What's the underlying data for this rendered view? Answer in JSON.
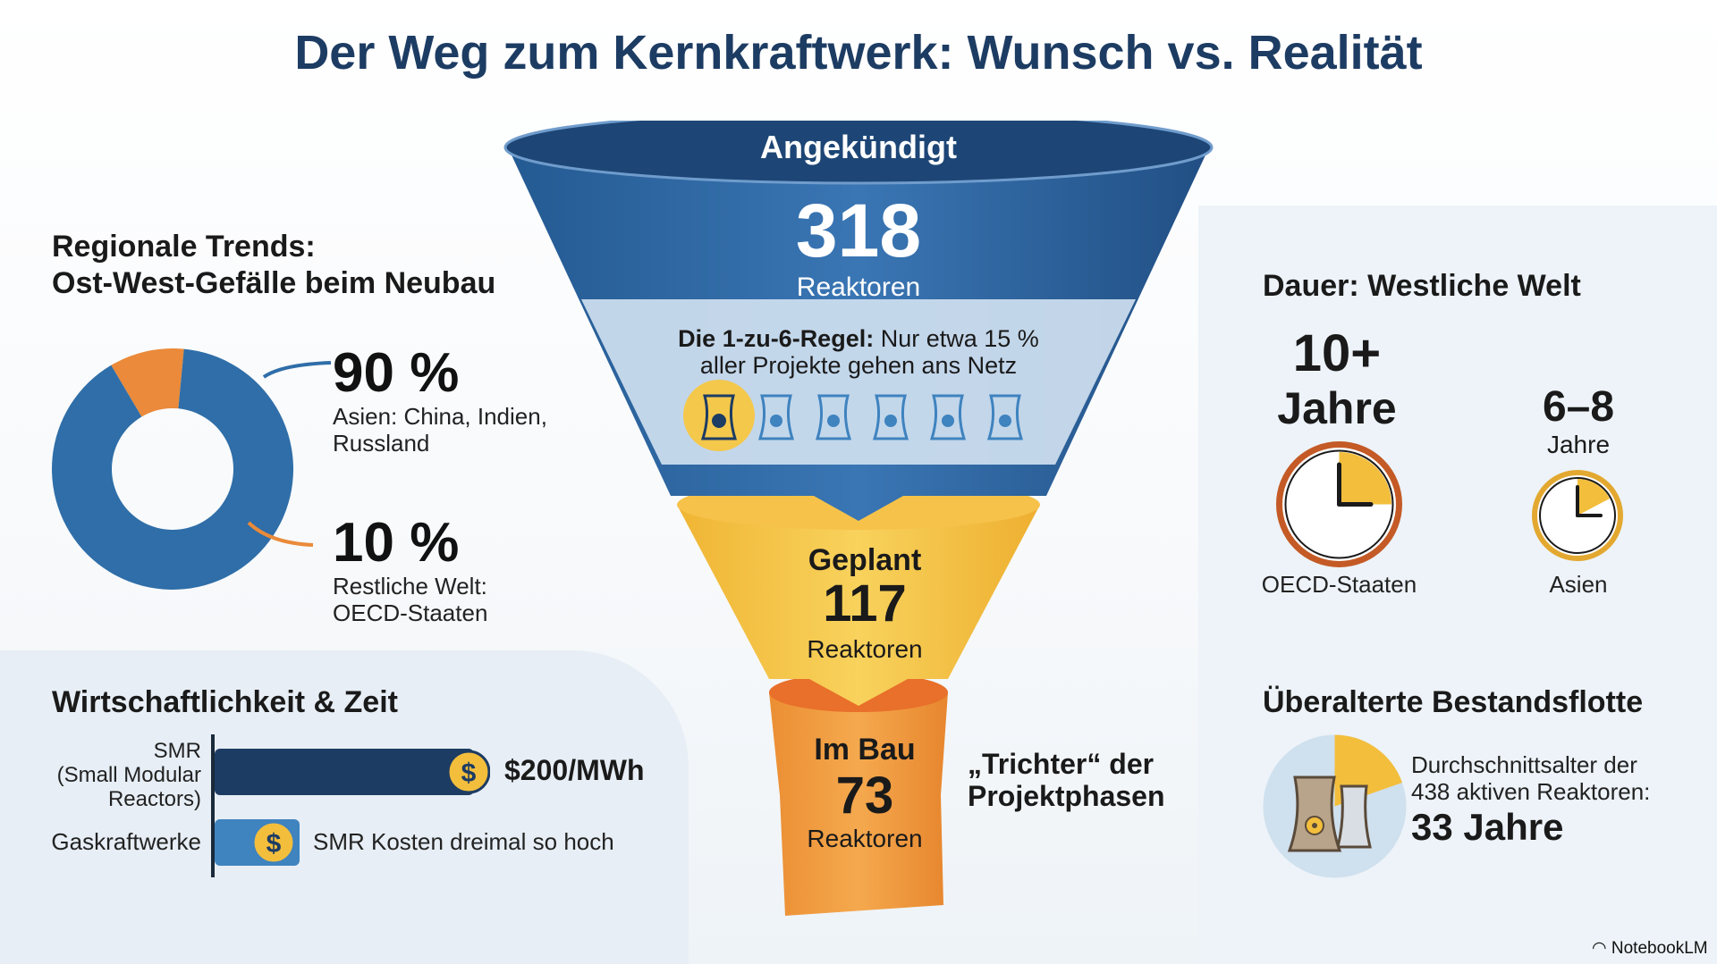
{
  "title": "Der Weg zum Kernkraftwerk: Wunsch vs. Realität",
  "regional": {
    "heading_line1": "Regionale Trends:",
    "heading_line2": "Ost-West-Gefälle beim Neubau",
    "asia_pct": "90 %",
    "asia_label_line1": "Asien: China, Indien,",
    "asia_label_line2": "Russland",
    "rest_pct": "10 %",
    "rest_label_line1": "Restliche Welt:",
    "rest_label_line2": "OECD-Staaten",
    "donut_values": [
      90,
      10
    ],
    "colors": {
      "asia": "#2f6ea8",
      "rest": "#ea8a3a"
    }
  },
  "economics": {
    "heading": "Wirtschaftlichkeit & Zeit",
    "smr_label_line1": "SMR",
    "smr_label_line2": "(Small Modular",
    "smr_label_line3": "Reactors)",
    "smr_value": "$200/MWh",
    "gas_label": "Gaskraftwerke",
    "gas_note": "SMR Kosten dreimal so hoch",
    "dollar_symbol": "$",
    "smr_cost_ratio": 3
  },
  "funnel": {
    "announced_label": "Angekündigt",
    "announced_value": "318",
    "announced_unit": "Reaktoren",
    "rule_bold": "Die 1-zu-6-Regel:",
    "rule_rest": " Nur etwa 15 %",
    "rule_line2": "aller Projekte gehen ans Netz",
    "planned_label": "Geplant",
    "planned_value": "117",
    "planned_unit": "Reaktoren",
    "construction_label": "Im Bau",
    "construction_value": "73",
    "construction_unit": "Reaktoren",
    "caption_line1": "„Trichter“ der",
    "caption_line2": "Projektphasen",
    "colors": {
      "top": "#2b5e97",
      "mid": "#f3be3c",
      "bottom": "#ef9a3a"
    }
  },
  "duration": {
    "heading": "Dauer: Westliche Welt",
    "oecd_value": "10+",
    "oecd_unit": "Jahre",
    "oecd_label": "OECD-Staaten",
    "asia_value": "6–8",
    "asia_unit": "Jahre",
    "asia_label": "Asien"
  },
  "fleet": {
    "heading": "Überalterte Bestandsflotte",
    "desc_line1": "Durchschnittsalter der",
    "desc_line2": "438 aktiven Reaktoren:",
    "age": "33 Jahre"
  },
  "brand": "NotebookLM"
}
